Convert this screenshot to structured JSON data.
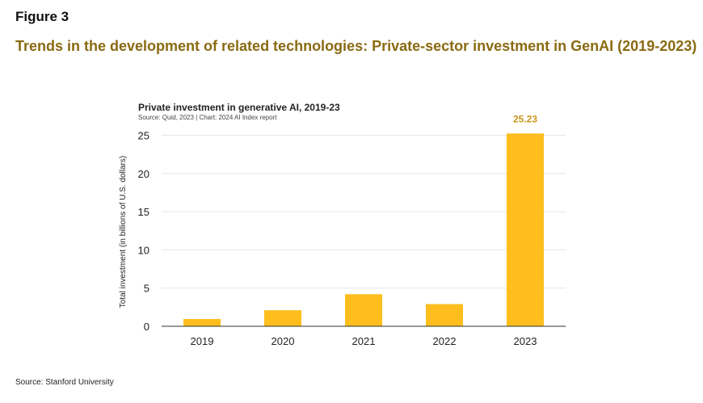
{
  "figure_label": "Figure 3",
  "figure_title": "Trends in the development of related technologies: Private-sector investment in GenAI (2019-2023)",
  "footer_source": "Source: Stanford University",
  "colors": {
    "bar": "#FDBE1E",
    "accent_title": "#8a6a12",
    "gridline": "#e6e6e6",
    "axis": "#333333",
    "data_label": "#c9951a"
  },
  "chart_data": {
    "type": "bar",
    "title": "Private investment in generative AI, 2019-23",
    "subtitle": "Source: Quid, 2023 | Chart: 2024 AI Index report",
    "xlabel": "",
    "ylabel": "Total investment (in billions of U.S. dollars)",
    "categories": [
      "2019",
      "2020",
      "2021",
      "2022",
      "2023"
    ],
    "values": [
      0.95,
      2.1,
      4.2,
      2.9,
      25.23
    ],
    "data_labels": [
      "",
      "",
      "",
      "",
      "25.23"
    ],
    "ylim": [
      0,
      26
    ],
    "yticks": [
      0,
      5,
      10,
      15,
      20,
      25
    ],
    "grid": true,
    "legend": "none"
  }
}
